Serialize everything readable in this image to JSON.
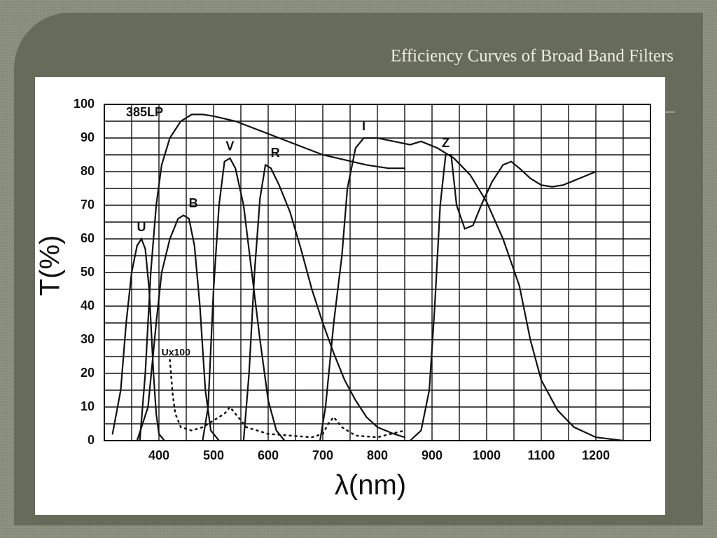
{
  "slide_title": "Efficiency Curves of Broad Band Filters",
  "chart_data": {
    "type": "line",
    "x_label": "λ(nm)",
    "y_label": "T(%)",
    "xlim": [
      300,
      1300
    ],
    "xticks": [
      400,
      500,
      600,
      700,
      800,
      900,
      1000,
      1100,
      1200
    ],
    "ylim": [
      0,
      100
    ],
    "yticks": [
      0,
      10,
      20,
      30,
      40,
      50,
      60,
      70,
      80,
      90,
      100
    ],
    "grid": true,
    "series": [
      {
        "name": "U",
        "color": "#111111",
        "style": "solid",
        "x": [
          315,
          330,
          340,
          350,
          360,
          368,
          375,
          382,
          390,
          395,
          400,
          410
        ],
        "values": [
          2,
          15,
          35,
          50,
          58,
          60,
          57,
          45,
          20,
          8,
          2,
          0
        ]
      },
      {
        "name": "B",
        "color": "#111111",
        "style": "solid",
        "x": [
          360,
          380,
          395,
          405,
          420,
          435,
          445,
          455,
          465,
          475,
          485,
          495,
          510
        ],
        "values": [
          0,
          10,
          35,
          50,
          60,
          66,
          67,
          66,
          58,
          40,
          15,
          3,
          0
        ]
      },
      {
        "name": "V",
        "color": "#111111",
        "style": "solid",
        "x": [
          480,
          490,
          500,
          510,
          520,
          530,
          540,
          555,
          570,
          585,
          600,
          615,
          630
        ],
        "values": [
          0,
          10,
          45,
          70,
          83,
          84,
          81,
          70,
          50,
          30,
          12,
          3,
          0
        ]
      },
      {
        "name": "R",
        "color": "#111111",
        "style": "solid",
        "x": [
          555,
          565,
          575,
          585,
          595,
          605,
          620,
          640,
          660,
          680,
          700,
          720,
          740,
          760,
          780,
          800,
          830,
          850
        ],
        "values": [
          0,
          20,
          50,
          72,
          82,
          81,
          76,
          68,
          57,
          45,
          35,
          26,
          18,
          12,
          7,
          4,
          2,
          1
        ]
      },
      {
        "name": "I",
        "color": "#111111",
        "style": "solid",
        "x": [
          695,
          705,
          720,
          735,
          745,
          760,
          775,
          800,
          830,
          860,
          880,
          910,
          940,
          970,
          1000,
          1030,
          1060,
          1080,
          1100,
          1130,
          1160,
          1200,
          1250
        ],
        "values": [
          0,
          10,
          35,
          55,
          75,
          87,
          90,
          90,
          89,
          88,
          89,
          87,
          84,
          79,
          71,
          60,
          46,
          30,
          18,
          9,
          4,
          1,
          0
        ]
      },
      {
        "name": "Z",
        "color": "#111111",
        "style": "solid",
        "x": [
          860,
          880,
          895,
          905,
          915,
          925,
          935,
          945,
          960,
          975,
          990,
          1010,
          1030,
          1045,
          1060,
          1080,
          1100,
          1120,
          1140,
          1170,
          1200
        ],
        "values": [
          0,
          3,
          15,
          40,
          70,
          85,
          85,
          70,
          63,
          64,
          70,
          77,
          82,
          83,
          81,
          78,
          76,
          75.5,
          76,
          78,
          80
        ]
      },
      {
        "name": "385LP",
        "color": "#111111",
        "style": "solid",
        "x": [
          365,
          375,
          385,
          395,
          405,
          420,
          440,
          460,
          480,
          500,
          540,
          580,
          620,
          660,
          700,
          740,
          780,
          820,
          850
        ],
        "values": [
          0,
          20,
          50,
          70,
          82,
          90,
          95,
          97,
          97,
          96.5,
          95,
          92.5,
          90,
          87.5,
          85,
          83.5,
          82,
          81,
          81
        ]
      },
      {
        "name": "Ux100",
        "color": "#111111",
        "style": "dotted",
        "x": [
          420,
          425,
          430,
          440,
          460,
          480,
          500,
          520,
          530,
          545,
          560,
          580,
          600,
          640,
          680,
          700,
          710,
          720,
          735,
          760,
          800,
          850
        ],
        "values": [
          24,
          14,
          8,
          4,
          3,
          4,
          6,
          8,
          10,
          7,
          4,
          3,
          2,
          1.5,
          1,
          2,
          5,
          7,
          4,
          1.5,
          1,
          3
        ]
      }
    ]
  }
}
